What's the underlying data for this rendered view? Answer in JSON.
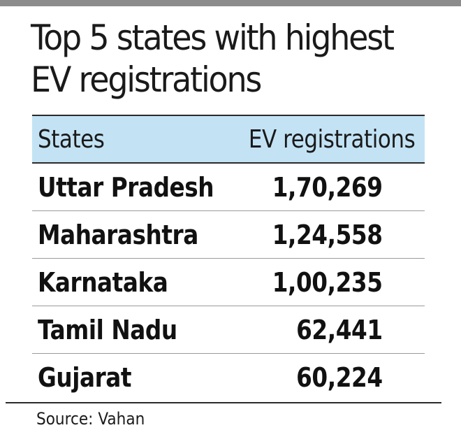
{
  "title": "Top 5 states with highest EV registrations",
  "table": {
    "columns": [
      "States",
      "EV registrations"
    ],
    "rows": [
      {
        "state": "Uttar Pradesh",
        "value": "1,70,269"
      },
      {
        "state": "Maharashtra",
        "value": "1,24,558"
      },
      {
        "state": "Karnataka",
        "value": "1,00,235"
      },
      {
        "state": "Tamil Nadu",
        "value": "62,441"
      },
      {
        "state": "Gujarat",
        "value": "60,224"
      }
    ]
  },
  "source": "Source: Vahan",
  "colors": {
    "header_fill": "#c3e3f5",
    "top_band": "#8c8c8c",
    "rule": "#2b2b2b"
  },
  "chart_data": {
    "type": "table",
    "title": "Top 5 states with highest EV registrations",
    "columns": [
      "States",
      "EV registrations"
    ],
    "categories": [
      "Uttar Pradesh",
      "Maharashtra",
      "Karnataka",
      "Tamil Nadu",
      "Gujarat"
    ],
    "values": [
      170269,
      124558,
      100235,
      62441,
      60224
    ],
    "source": "Source: Vahan"
  }
}
